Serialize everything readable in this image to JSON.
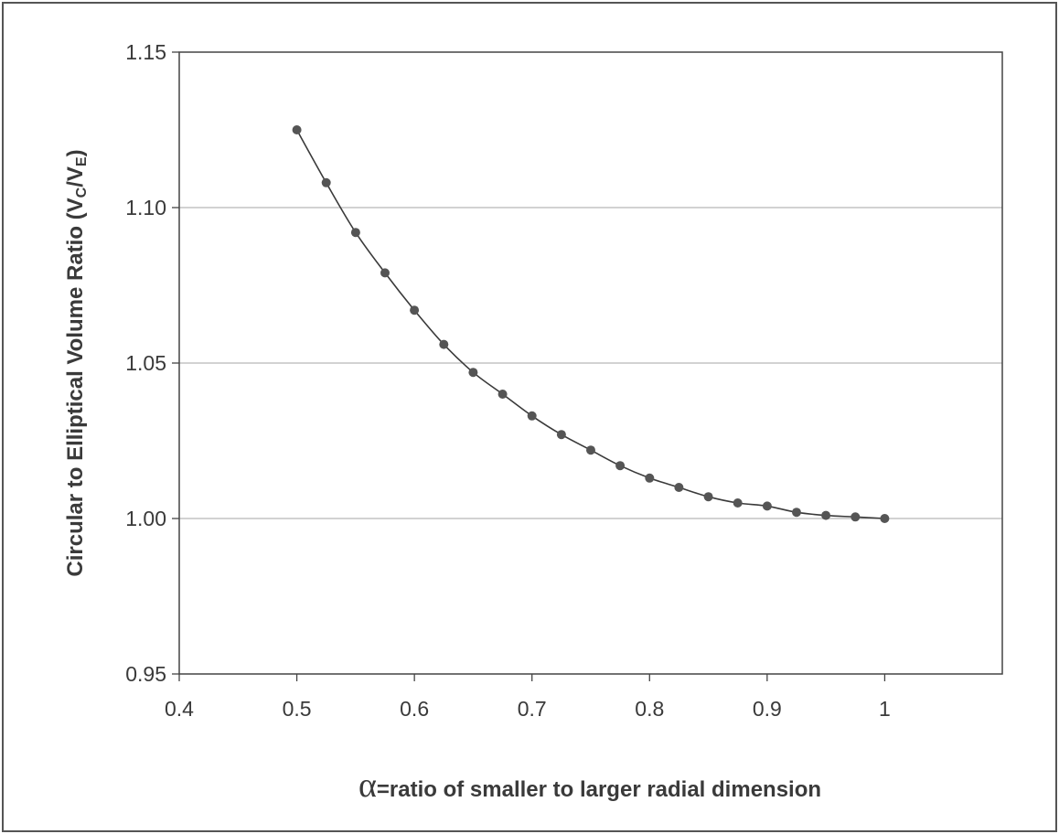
{
  "chart_data": {
    "type": "line",
    "ylabel_main": "Circular to Elliptical Volume Ratio (V",
    "ylabel_sub1": "C",
    "ylabel_mid": "/V",
    "ylabel_sub2": "E",
    "ylabel_end": ")",
    "xlabel_symbol": "α",
    "xlabel": "=ratio of smaller to larger radial dimension",
    "xlim": [
      0.4,
      1.1
    ],
    "ylim": [
      0.95,
      1.15
    ],
    "x_ticks": [
      0.4,
      0.5,
      0.6,
      0.7,
      0.8,
      0.9,
      1.0
    ],
    "x_tick_labels": [
      "0.4",
      "0.5",
      "0.6",
      "0.7",
      "0.8",
      "0.9",
      "1"
    ],
    "y_ticks": [
      0.95,
      1.0,
      1.05,
      1.1,
      1.15
    ],
    "y_tick_labels": [
      "0.95",
      "1.00",
      "1.05",
      "1.10",
      "1.15"
    ],
    "grid": "horizontal",
    "series": [
      {
        "x": [
          0.5,
          0.525,
          0.55,
          0.575,
          0.6,
          0.625,
          0.65,
          0.675,
          0.7,
          0.725,
          0.75,
          0.775,
          0.8,
          0.825,
          0.85,
          0.875,
          0.9,
          0.925,
          0.95,
          0.975,
          1.0
        ],
        "values": [
          1.125,
          1.108,
          1.092,
          1.079,
          1.067,
          1.056,
          1.047,
          1.04,
          1.033,
          1.027,
          1.022,
          1.017,
          1.013,
          1.01,
          1.007,
          1.005,
          1.004,
          1.002,
          1.001,
          1.0005,
          1.0
        ]
      }
    ]
  },
  "colors": {
    "line": "#3a3a3a",
    "marker": "#555555",
    "grid": "#b8b8b8",
    "frame": "#444444"
  }
}
